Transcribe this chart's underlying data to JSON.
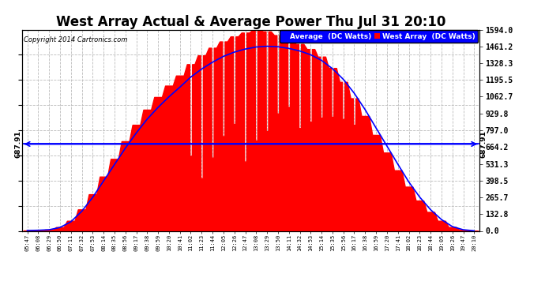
{
  "title": "West Array Actual & Average Power Thu Jul 31 20:10",
  "copyright": "Copyright 2014 Cartronics.com",
  "yticks": [
    0.0,
    132.8,
    265.7,
    398.5,
    531.3,
    664.2,
    797.0,
    929.8,
    1062.7,
    1195.5,
    1328.3,
    1461.2,
    1594.0
  ],
  "ymax": 1594.0,
  "ymin": 0.0,
  "hline_value": 687.91,
  "hline_label": "687.91",
  "west_array_color": "#FF0000",
  "average_color": "#0000FF",
  "background_color": "#FFFFFF",
  "grid_color": "#BBBBBB",
  "title_fontsize": 12,
  "legend_blue_label": "Average  (DC Watts)",
  "legend_red_label": "West Array  (DC Watts)",
  "x_labels": [
    "05:47",
    "06:08",
    "06:29",
    "06:50",
    "07:11",
    "07:32",
    "07:53",
    "08:14",
    "08:35",
    "08:56",
    "09:17",
    "09:38",
    "09:59",
    "10:20",
    "10:41",
    "11:02",
    "11:23",
    "11:44",
    "12:05",
    "12:26",
    "12:47",
    "13:08",
    "13:29",
    "13:50",
    "14:11",
    "14:32",
    "14:53",
    "15:14",
    "15:35",
    "15:56",
    "16:17",
    "16:38",
    "16:59",
    "17:20",
    "17:41",
    "18:02",
    "18:23",
    "18:44",
    "19:05",
    "19:26",
    "19:47",
    "20:10"
  ],
  "west_values": [
    3,
    5,
    10,
    30,
    80,
    170,
    290,
    430,
    570,
    710,
    840,
    960,
    1060,
    1150,
    1230,
    1320,
    1390,
    1450,
    1500,
    1540,
    1570,
    1590,
    1580,
    1550,
    1510,
    1480,
    1440,
    1380,
    1290,
    1180,
    1050,
    910,
    760,
    620,
    480,
    350,
    240,
    150,
    80,
    30,
    8,
    1
  ],
  "avg_values": [
    3,
    5,
    9,
    27,
    72,
    155,
    265,
    395,
    525,
    655,
    775,
    885,
    978,
    1062,
    1138,
    1218,
    1282,
    1336,
    1382,
    1416,
    1440,
    1456,
    1462,
    1458,
    1445,
    1425,
    1395,
    1350,
    1285,
    1200,
    1090,
    960,
    815,
    672,
    528,
    388,
    268,
    168,
    90,
    34,
    9,
    1
  ],
  "spike_positions": [
    15,
    16,
    17,
    18,
    19,
    20,
    21,
    22,
    23,
    24,
    25,
    26,
    27,
    28,
    29,
    30
  ],
  "spike_drop_fractions": [
    0.45,
    0.3,
    0.4,
    0.5,
    0.55,
    0.35,
    0.45,
    0.5,
    0.6,
    0.65,
    0.55,
    0.6,
    0.65,
    0.7,
    0.75,
    0.8
  ]
}
